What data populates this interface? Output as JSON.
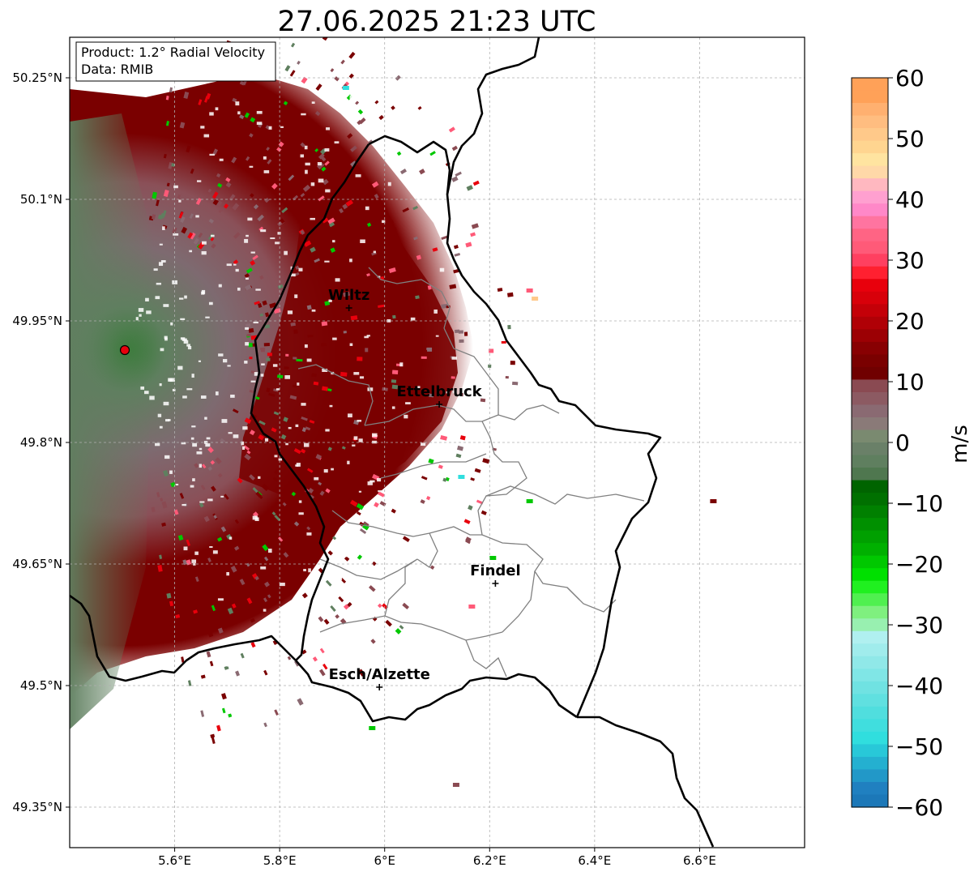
{
  "title": "27.06.2025 21:23 UTC",
  "info": {
    "product": "Product: 1.2° Radial Velocity",
    "source": "Data: RMIB"
  },
  "map": {
    "lon_range": [
      5.4,
      6.8
    ],
    "lat_range": [
      49.3,
      50.3
    ],
    "lon_ticks": [
      {
        "value": 5.6,
        "label": "5.6°E"
      },
      {
        "value": 5.8,
        "label": "5.8°E"
      },
      {
        "value": 6.0,
        "label": "6°E"
      },
      {
        "value": 6.2,
        "label": "6.2°E"
      },
      {
        "value": 6.4,
        "label": "6.4°E"
      },
      {
        "value": 6.6,
        "label": "6.6°E"
      }
    ],
    "lat_ticks": [
      {
        "value": 50.25,
        "label": "50.25°N"
      },
      {
        "value": 50.1,
        "label": "50.1°N"
      },
      {
        "value": 49.95,
        "label": "49.95°N"
      },
      {
        "value": 49.8,
        "label": "49.8°N"
      },
      {
        "value": 49.65,
        "label": "49.65°N"
      },
      {
        "value": 49.5,
        "label": "49.5°N"
      },
      {
        "value": 49.35,
        "label": "49.35°N"
      }
    ],
    "grid": true,
    "radar_site": {
      "lon": 5.505,
      "lat": 49.914
    },
    "cities": [
      {
        "name": "Wiltz",
        "lon": 5.932,
        "lat": 49.966
      },
      {
        "name": "Ettelbruck",
        "lon": 6.104,
        "lat": 49.847
      },
      {
        "name": "Findel",
        "lon": 6.211,
        "lat": 49.626
      },
      {
        "name": "Esch/Alzette",
        "lon": 5.99,
        "lat": 49.498
      }
    ]
  },
  "colorbar": {
    "label": "m/s",
    "min": -60,
    "max": 60,
    "ticks": [
      {
        "value": 60,
        "label": "60"
      },
      {
        "value": 50,
        "label": "50"
      },
      {
        "value": 40,
        "label": "40"
      },
      {
        "value": 30,
        "label": "30"
      },
      {
        "value": 20,
        "label": "20"
      },
      {
        "value": 10,
        "label": "10"
      },
      {
        "value": 0,
        "label": "0"
      },
      {
        "value": -10,
        "label": "−10"
      },
      {
        "value": -20,
        "label": "−20"
      },
      {
        "value": -30,
        "label": "−30"
      },
      {
        "value": -40,
        "label": "−40"
      },
      {
        "value": -50,
        "label": "−50"
      },
      {
        "value": -60,
        "label": "−60"
      }
    ],
    "colors": {
      "light_orange": "#ffa158",
      "tan": "#ffc98a",
      "light_yellow": "#ffe4a0",
      "pink": "#ff88c8",
      "rose": "#ff5a78",
      "red": "#e8000c",
      "dark_red": "#7a0000",
      "maroon_gray": "#8a4a52",
      "mauve_gray": "#8a6a72",
      "gray_green": "#5f7f5f",
      "dark_green": "#006400",
      "green": "#00c800",
      "light_green": "#7ff07f",
      "pale_cyan": "#b0f0f0",
      "cyan": "#30dede",
      "blue": "#2080c0"
    }
  }
}
